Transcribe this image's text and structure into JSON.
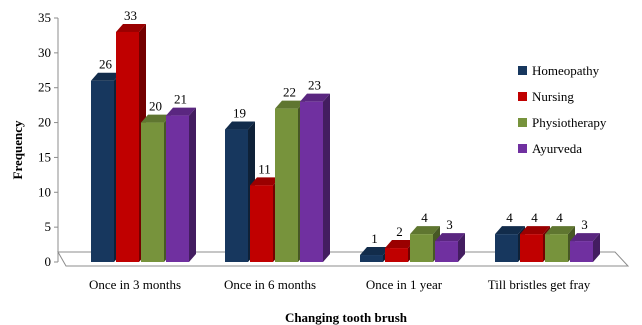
{
  "chart_data": {
    "type": "bar",
    "title": "",
    "xlabel": "Changing tooth brush",
    "ylabel": "Frequency",
    "ylim": [
      0,
      35
    ],
    "yticks": [
      0,
      5,
      10,
      15,
      20,
      25,
      30,
      35
    ],
    "categories": [
      "Once in 3 months",
      "Once in 6 months",
      "Once in 1 year",
      "Till bristles get fray"
    ],
    "series": [
      {
        "name": "Homeopathy",
        "values": [
          26,
          19,
          1,
          4
        ],
        "color": "#17375e"
      },
      {
        "name": "Nursing",
        "values": [
          33,
          11,
          2,
          4
        ],
        "color": "#c00000"
      },
      {
        "name": "Physiotherapy",
        "values": [
          20,
          22,
          4,
          4
        ],
        "color": "#77933c"
      },
      {
        "name": "Ayurveda",
        "values": [
          21,
          23,
          3,
          3
        ],
        "color": "#7030a0"
      }
    ],
    "style": "3d-clustered-column",
    "grid": false,
    "legend_position": "right"
  }
}
